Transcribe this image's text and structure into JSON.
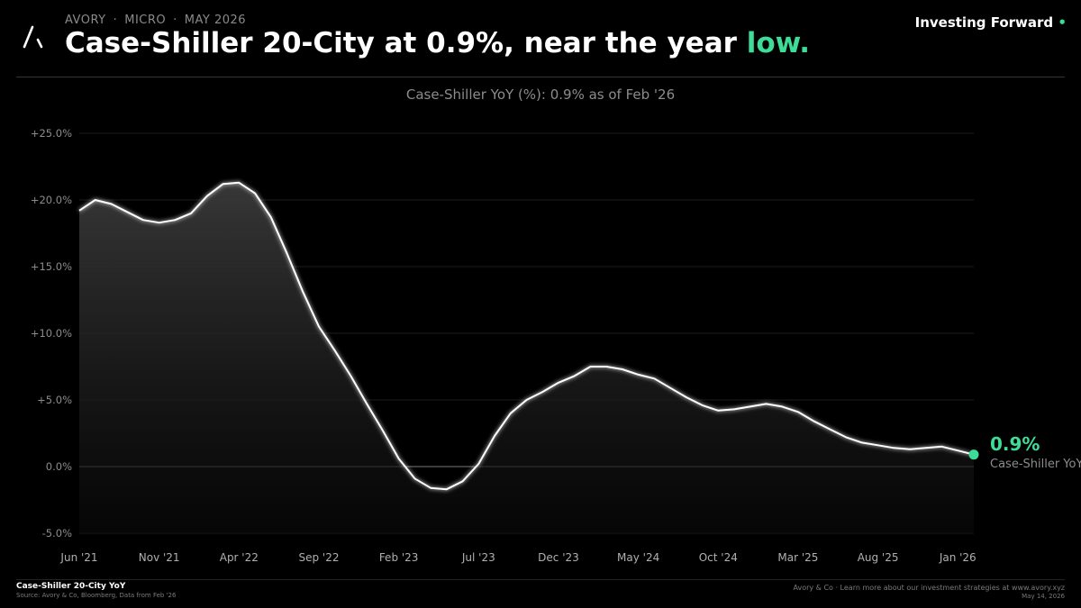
{
  "header": {
    "kicker": [
      "AVORY",
      "MICRO",
      "MAY 2026"
    ],
    "kicker_separator": "·",
    "headline_main": "Case-Shiller 20-City at 0.9%, near the year ",
    "headline_accent": "low",
    "headline_dot": ".",
    "brand": "Investing Forward",
    "brand_dot": "•"
  },
  "colors": {
    "accent": "#3ddc97",
    "line": "#ffffff",
    "background": "#000000"
  },
  "chart_data": {
    "type": "area",
    "title": "Case-Shiller YoY (%): 0.9% as of Feb '26",
    "ylim": [
      -5.5,
      25.5
    ],
    "yticks": [
      25,
      20,
      15,
      10,
      5,
      0,
      -5
    ],
    "ytick_labels": [
      "+25.0%",
      "+20.0%",
      "+15.0%",
      "+10.0%",
      "+5.0%",
      "0.0%",
      "-5.0%"
    ],
    "xtick_labels": [
      "Jun '21",
      "Nov '21",
      "Apr '22",
      "Sep '22",
      "Feb '23",
      "Jul '23",
      "Dec '23",
      "May '24",
      "Oct '24",
      "Mar '25",
      "Aug '25",
      "Jan '26"
    ],
    "xtick_index": [
      0,
      5,
      10,
      15,
      20,
      25,
      30,
      35,
      40,
      45,
      50,
      55
    ],
    "grid": true,
    "series": [
      {
        "name": "Case-Shiller YoY",
        "start": "Jun '21",
        "frequency": "monthly",
        "values": [
          19.2,
          20.0,
          19.7,
          19.1,
          18.5,
          18.3,
          18.5,
          19.0,
          20.3,
          21.2,
          21.3,
          20.5,
          18.7,
          16.0,
          13.1,
          10.5,
          8.7,
          6.8,
          4.7,
          2.7,
          0.6,
          -0.9,
          -1.6,
          -1.7,
          -1.1,
          0.2,
          2.3,
          4.0,
          5.0,
          5.6,
          6.3,
          6.8,
          7.5,
          7.5,
          7.3,
          6.9,
          6.6,
          5.9,
          5.2,
          4.6,
          4.2,
          4.3,
          4.5,
          4.7,
          4.5,
          4.1,
          3.4,
          2.8,
          2.2,
          1.8,
          1.6,
          1.4,
          1.3,
          1.4,
          1.5,
          1.2,
          0.9
        ]
      }
    ],
    "end_label_value": "0.9%",
    "end_label_name": "Case-Shiller YoY"
  },
  "footer": {
    "title": "Case-Shiller 20-City YoY",
    "source": "Source: Avory & Co, Bloomberg, Data from Feb '26",
    "right_text": "Avory & Co · Learn more about our investment strategies at www.avory.xyz",
    "date": "May 14, 2026"
  }
}
